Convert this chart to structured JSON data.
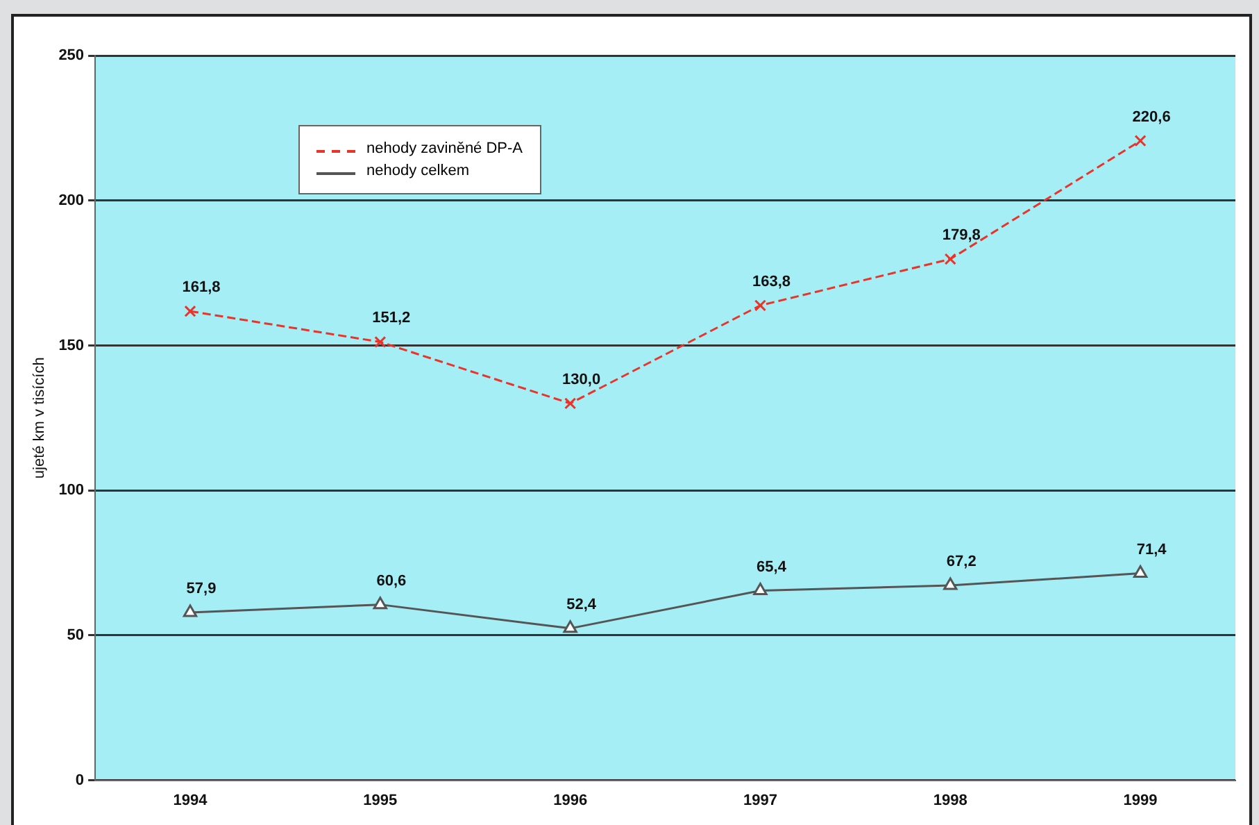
{
  "chart_data": {
    "type": "line",
    "ylabel": "ujeté km v tisících",
    "categories": [
      "1994",
      "1995",
      "1996",
      "1997",
      "1998",
      "1999"
    ],
    "series": [
      {
        "name": "nehody zaviněné DP-A",
        "color": "#e8342a",
        "values": [
          161.8,
          151.2,
          130.0,
          163.8,
          179.8,
          220.6
        ],
        "value_labels": [
          "161,8",
          "151,2",
          "130,0",
          "163,8",
          "179,8",
          "220,6"
        ],
        "marker": "cross",
        "line_style": "dashed"
      },
      {
        "name": "nehody celkem",
        "color": "#555555",
        "values": [
          57.9,
          60.6,
          52.4,
          65.4,
          67.2,
          71.4
        ],
        "value_labels": [
          "57,9",
          "60,6",
          "52,4",
          "65,4",
          "67,2",
          "71,4"
        ],
        "marker": "triangle",
        "line_style": "solid"
      }
    ],
    "ylim": [
      0,
      250
    ],
    "yticks": [
      0,
      50,
      100,
      150,
      200,
      250
    ],
    "grid": "y",
    "legend": "top left"
  }
}
